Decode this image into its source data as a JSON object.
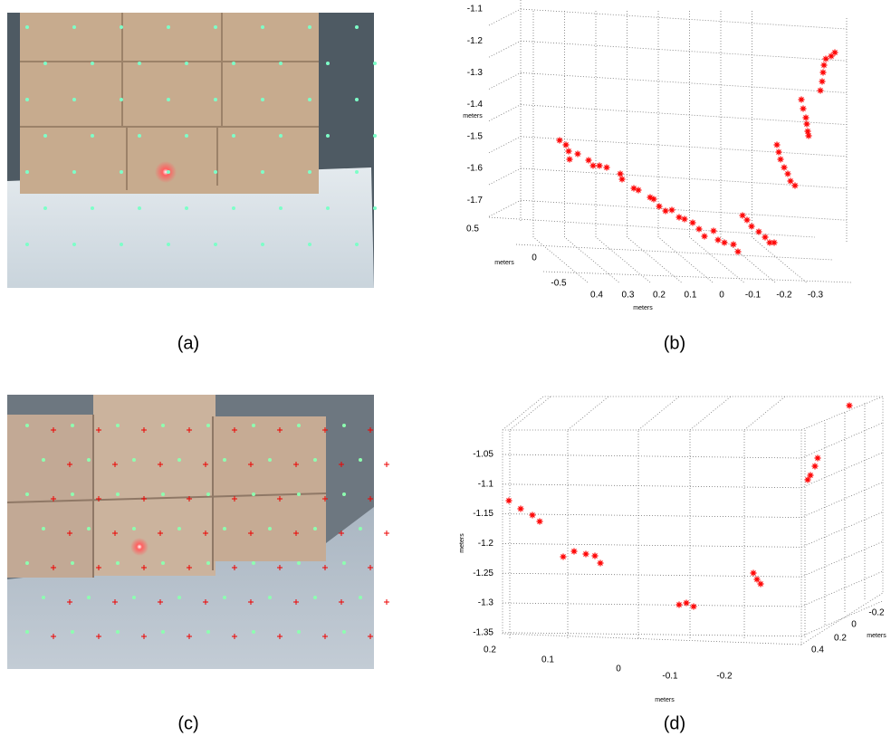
{
  "panels": [
    {
      "caption": "(a)"
    },
    {
      "caption": "(b)",
      "z_label": "meters",
      "y_label": "meters",
      "x_label": "meters",
      "zticks": [
        -1.1,
        -1.2,
        -1.3,
        -1.4,
        -1.5,
        -1.6,
        -1.7
      ],
      "yticks": [
        0.5,
        0,
        -0.5
      ],
      "xticks": [
        0.4,
        0.3,
        0.2,
        0.1,
        0,
        -0.1,
        -0.2,
        -0.3
      ]
    },
    {
      "caption": "(c)"
    },
    {
      "caption": "(d)",
      "z_label": "meters",
      "y_label": "meters",
      "x_label": "meters",
      "zticks": [
        -1.05,
        -1.1,
        -1.15,
        -1.2,
        -1.25,
        -1.3,
        -1.35
      ],
      "yticks": [
        -0.2,
        0,
        0.2,
        0.4
      ],
      "xticks": [
        0.2,
        0.1,
        0,
        -0.1,
        -0.2
      ]
    }
  ]
}
